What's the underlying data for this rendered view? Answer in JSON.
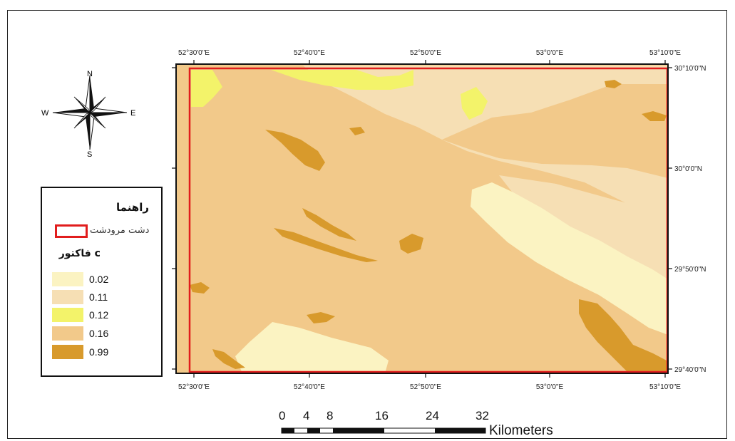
{
  "map": {
    "north_arrow": {
      "n": "N",
      "s": "S",
      "e": "E",
      "w": "W"
    },
    "longitude_labels": [
      "52°30'0\"E",
      "52°40'0\"E",
      "52°50'0\"E",
      "53°0'0\"E",
      "53°10'0\"E"
    ],
    "latitude_labels": [
      "30°10'0\"N",
      "30°0'0\"N",
      "29°50'0\"N",
      "29°40'0\"N"
    ],
    "colors": {
      "c_0_02": "#fbf3c2",
      "c_0_11": "#f6dfb4",
      "c_0_12": "#f3f36a",
      "c_0_16": "#f2c98a",
      "c_0_99": "#d89a2c",
      "boundary": "#e11d1d"
    }
  },
  "legend": {
    "title": "راهنما",
    "boundary_label": "دشت مرودشت",
    "factor_title": "فاکتور c",
    "classes": [
      {
        "label": "0.02",
        "color": "#fbf3c2"
      },
      {
        "label": "0.11",
        "color": "#f6dfb4"
      },
      {
        "label": "0.12",
        "color": "#f3f36a"
      },
      {
        "label": "0.16",
        "color": "#f2c98a"
      },
      {
        "label": "0.99",
        "color": "#d89a2c"
      }
    ]
  },
  "scale_bar": {
    "ticks": [
      "0",
      "4",
      "8",
      "16",
      "24",
      "32"
    ],
    "unit": "Kilometers"
  }
}
